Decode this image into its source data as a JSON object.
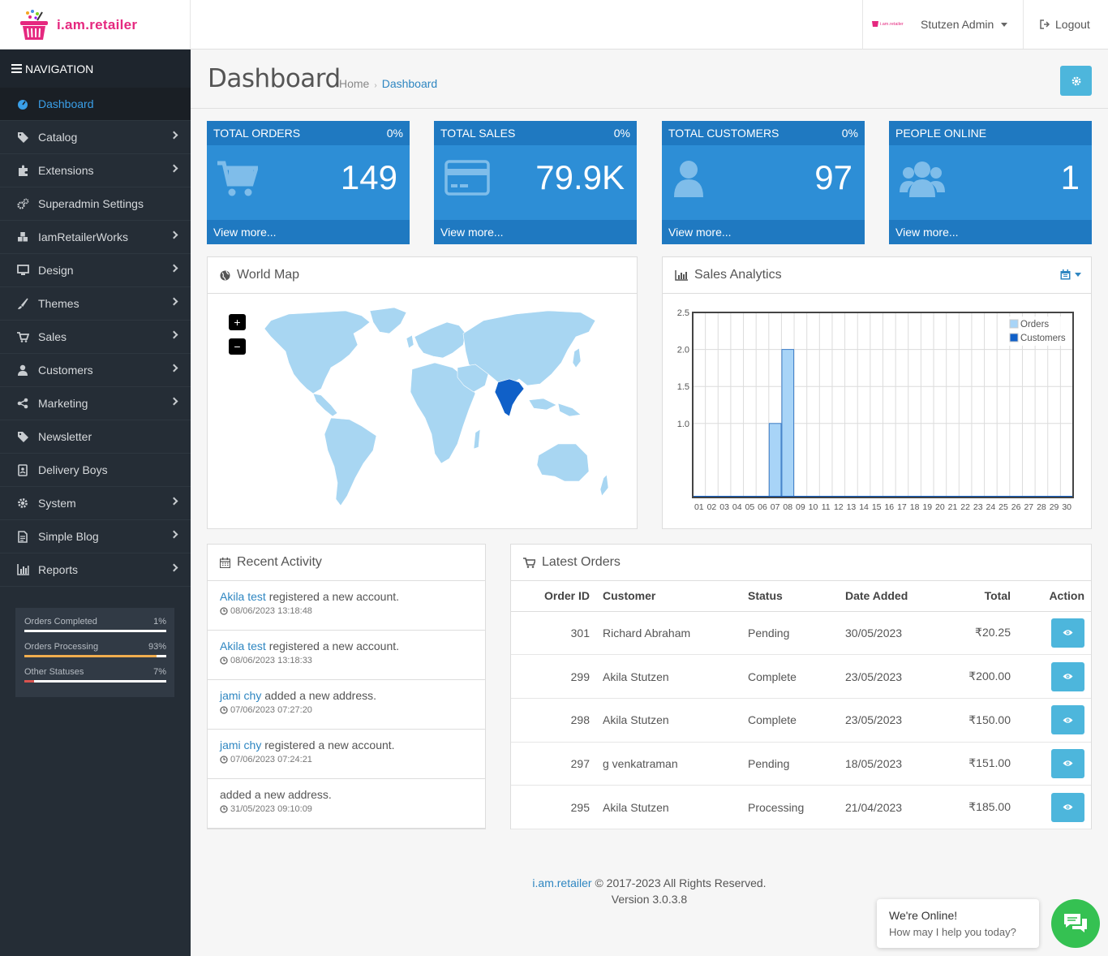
{
  "brand": {
    "name": "i.am.retailer",
    "mini_logo_text": "i.am.retailer"
  },
  "topbar": {
    "user": "Stutzen Admin",
    "logout": "Logout"
  },
  "navigation": {
    "header": "NAVIGATION",
    "items": [
      {
        "label": "Dashboard",
        "icon": "dashboard-icon",
        "active": true,
        "submenu": false
      },
      {
        "label": "Catalog",
        "icon": "tag-icon",
        "submenu": true
      },
      {
        "label": "Extensions",
        "icon": "puzzle-icon",
        "submenu": true
      },
      {
        "label": "Superadmin Settings",
        "icon": "cogs-icon",
        "submenu": false
      },
      {
        "label": "IamRetailerWorks",
        "icon": "cubes-icon",
        "submenu": true
      },
      {
        "label": "Design",
        "icon": "desktop-icon",
        "submenu": true
      },
      {
        "label": "Themes",
        "icon": "brush-icon",
        "submenu": true
      },
      {
        "label": "Sales",
        "icon": "cart-icon",
        "submenu": true
      },
      {
        "label": "Customers",
        "icon": "user-icon",
        "submenu": true
      },
      {
        "label": "Marketing",
        "icon": "share-icon",
        "submenu": true
      },
      {
        "label": "Newsletter",
        "icon": "tags-icon",
        "submenu": false
      },
      {
        "label": "Delivery Boys",
        "icon": "badge-icon",
        "submenu": false
      },
      {
        "label": "System",
        "icon": "gear-icon",
        "submenu": true
      },
      {
        "label": "Simple Blog",
        "icon": "file-icon",
        "submenu": true
      },
      {
        "label": "Reports",
        "icon": "bar-chart-icon",
        "submenu": true
      }
    ]
  },
  "order_stats": [
    {
      "label": "Orders Completed",
      "percent": "1%",
      "value": 1,
      "color": "#ffffff"
    },
    {
      "label": "Orders Processing",
      "percent": "93%",
      "value": 93,
      "color": "#f0ad4e"
    },
    {
      "label": "Other Statuses",
      "percent": "7%",
      "value": 7,
      "color": "#d9534f"
    }
  ],
  "page": {
    "title": "Dashboard",
    "breadcrumb": [
      "Home",
      "Dashboard"
    ]
  },
  "tiles": [
    {
      "title": "TOTAL ORDERS",
      "percent": "0%",
      "value": "149",
      "icon": "cart-icon",
      "link": "View more..."
    },
    {
      "title": "TOTAL SALES",
      "percent": "0%",
      "value": "79.9K",
      "icon": "credit-card-icon",
      "link": "View more..."
    },
    {
      "title": "TOTAL CUSTOMERS",
      "percent": "0%",
      "value": "97",
      "icon": "user-icon",
      "link": "View more..."
    },
    {
      "title": "PEOPLE ONLINE",
      "percent": "",
      "value": "1",
      "icon": "users-icon",
      "link": "View more..."
    }
  ],
  "world_map": {
    "title": "World Map",
    "zoom_in": "+",
    "zoom_out": "−",
    "highlight": "India"
  },
  "sales_analytics": {
    "title": "Sales Analytics"
  },
  "chart_data": {
    "type": "bar",
    "categories": [
      "01",
      "02",
      "03",
      "04",
      "05",
      "06",
      "07",
      "08",
      "09",
      "10",
      "11",
      "12",
      "13",
      "14",
      "15",
      "16",
      "17",
      "18",
      "19",
      "20",
      "21",
      "22",
      "23",
      "24",
      "25",
      "26",
      "27",
      "28",
      "29",
      "30"
    ],
    "series": [
      {
        "name": "Orders",
        "color": "#a8d4f7",
        "values": [
          0,
          0,
          0,
          0,
          0,
          0,
          1,
          2,
          0,
          0,
          0,
          0,
          0,
          0,
          0,
          0,
          0,
          0,
          0,
          0,
          0,
          0,
          0,
          0,
          0,
          0,
          0,
          0,
          0,
          0
        ]
      },
      {
        "name": "Customers",
        "color": "#1060c8",
        "values": [
          0,
          0,
          0,
          0,
          0,
          0,
          0,
          0,
          0,
          0,
          0,
          0,
          0,
          0,
          0,
          0,
          0,
          0,
          0,
          0,
          0,
          0,
          0,
          0,
          0,
          0,
          0,
          0,
          0,
          0
        ]
      }
    ],
    "yticks": [
      "2.5",
      "2.0",
      "1.5",
      "1.0"
    ],
    "ylim": [
      0,
      2.5
    ],
    "legend": "top-right",
    "grid": true
  },
  "recent_activity": {
    "title": "Recent Activity",
    "items": [
      {
        "who": "Akila test",
        "text": " registered a new account.",
        "date": "08/06/2023 13:18:48"
      },
      {
        "who": "Akila test",
        "text": " registered a new account.",
        "date": "08/06/2023 13:18:33"
      },
      {
        "who": "jami chy",
        "text": " added a new address.",
        "date": "07/06/2023 07:27:20"
      },
      {
        "who": "jami chy",
        "text": " registered a new account.",
        "date": "07/06/2023 07:24:21"
      },
      {
        "who": "",
        "text": "added a new address.",
        "date": "31/05/2023 09:10:09"
      }
    ]
  },
  "latest_orders": {
    "title": "Latest Orders",
    "columns": [
      "Order ID",
      "Customer",
      "Status",
      "Date Added",
      "Total",
      "Action"
    ],
    "rows": [
      {
        "id": "301",
        "customer": "Richard Abraham",
        "status": "Pending",
        "date": "30/05/2023",
        "total": "₹20.25"
      },
      {
        "id": "299",
        "customer": "Akila Stutzen",
        "status": "Complete",
        "date": "23/05/2023",
        "total": "₹200.00"
      },
      {
        "id": "298",
        "customer": "Akila Stutzen",
        "status": "Complete",
        "date": "23/05/2023",
        "total": "₹150.00"
      },
      {
        "id": "297",
        "customer": "g venkatraman",
        "status": "Pending",
        "date": "18/05/2023",
        "total": "₹151.00"
      },
      {
        "id": "295",
        "customer": "Akila Stutzen",
        "status": "Processing",
        "date": "21/04/2023",
        "total": "₹185.00"
      }
    ]
  },
  "footer": {
    "brand": "i.am.retailer",
    "copyright": " © 2017-2023 All Rights Reserved.",
    "version": "Version 3.0.3.8"
  },
  "chat": {
    "title": "We're Online!",
    "subtitle": "How may I help you today?"
  }
}
